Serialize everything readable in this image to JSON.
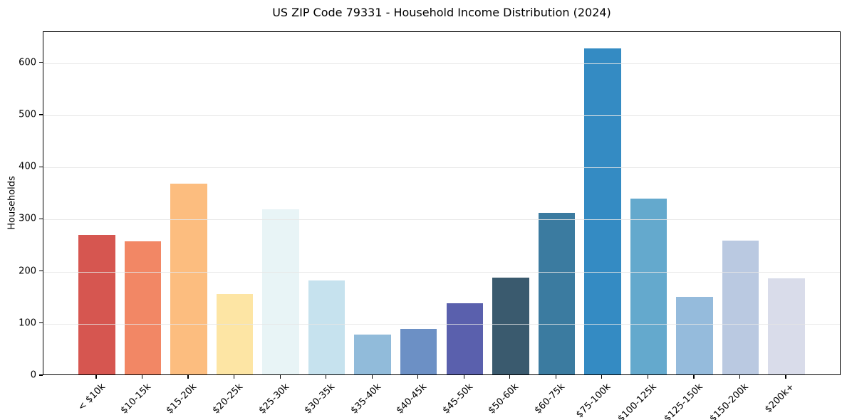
{
  "chart_data": {
    "type": "bar",
    "title": "US ZIP Code 79331 - Household Income Distribution (2024)",
    "xlabel": "",
    "ylabel": "Households",
    "categories": [
      "< $10k",
      "$10-15k",
      "$15-20k",
      "$20-25k",
      "$25-30k",
      "$30-35k",
      "$35-40k",
      "$40-45k",
      "$45-50k",
      "$50-60k",
      "$60-75k",
      "$75-100k",
      "$100-125k",
      "$125-150k",
      "$150-200k",
      "$200k+"
    ],
    "values": [
      268,
      255,
      366,
      154,
      317,
      181,
      76,
      87,
      136,
      186,
      310,
      626,
      338,
      149,
      257,
      185
    ],
    "bar_colors": [
      "#d65650",
      "#f28765",
      "#fcbd7f",
      "#fde5a4",
      "#e8f4f6",
      "#c6e2ee",
      "#91bbda",
      "#6c90c5",
      "#5a60ad",
      "#3a5a6e",
      "#3b7ba0",
      "#348bc3",
      "#64a9cd",
      "#95bbdc",
      "#bac9e1",
      "#d9dcea"
    ],
    "yticks": [
      0,
      100,
      200,
      300,
      400,
      500,
      600
    ],
    "ylim": [
      0,
      660
    ],
    "x_tick_rotation": 45,
    "grid": "horizontal",
    "grid_color": "#e5e5e5",
    "grid_alpha": 0.85,
    "spine_color": "#000000",
    "background_color": "#ffffff",
    "legend": "none"
  }
}
